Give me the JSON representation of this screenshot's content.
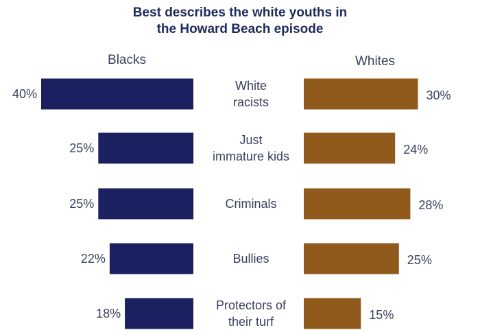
{
  "chart_data": {
    "type": "bar",
    "title": "Best describes the white youths in the Howard Beach episode",
    "title_lines": [
      "Best describes the white youths in",
      "the Howard Beach episode"
    ],
    "categories": [
      [
        "White",
        "racists"
      ],
      [
        "Just",
        "immature kids"
      ],
      [
        "Criminals"
      ],
      [
        "Bullies"
      ],
      [
        "Protectors of",
        "their turf"
      ]
    ],
    "series": [
      {
        "name": "Blacks",
        "values": [
          40,
          25,
          25,
          22,
          18
        ],
        "labels": [
          "40%",
          "25%",
          "25%",
          "22%",
          "18%"
        ],
        "color": "#1b2160"
      },
      {
        "name": "Whites",
        "values": [
          30,
          24,
          28,
          25,
          15
        ],
        "labels": [
          "30%",
          "24%",
          "28%",
          "25%",
          "15%"
        ],
        "color": "#8f5a1c"
      }
    ],
    "unit": "%",
    "layout": "butterfly"
  }
}
